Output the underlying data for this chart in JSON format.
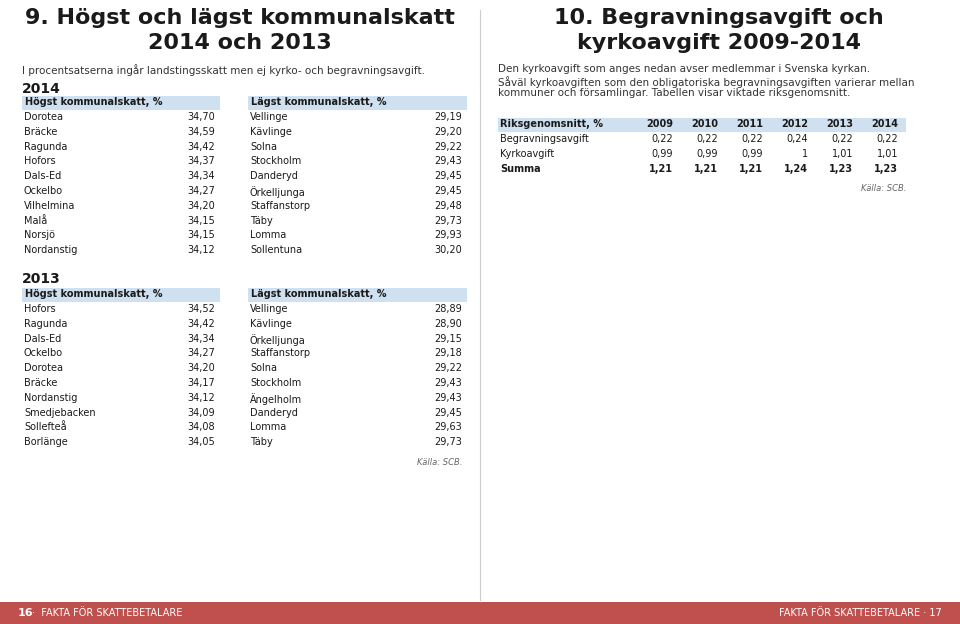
{
  "left_title_line1": "9. Högst och lägst kommunalskatt",
  "left_title_line2": "2014 och 2013",
  "left_subtitle": "I procentsatserna ingår landstingsskatt men ej kyrko- och begravningsavgift.",
  "right_title_line1": "10. Begravningsavgift och",
  "right_title_line2": "kyrkoavgift 2009-2014",
  "right_subtitle_line1": "Den kyrkoavgift som anges nedan avser medlemmar i Svenska kyrkan.",
  "right_subtitle_line2": "Såväl kyrkoavgiften som den obligatoriska begravningsavgiften varierar mellan",
  "right_subtitle_line3": "kommuner och församlingar. Tabellen visar viktade riksgenomsnitt.",
  "section_2014_label": "2014",
  "section_2013_label": "2013",
  "hogst_header": "Högst kommunalskatt, %",
  "lagst_header": "Lägst kommunalskatt, %",
  "hogst_2014": [
    [
      "Dorotea",
      "34,70"
    ],
    [
      "Bräcke",
      "34,59"
    ],
    [
      "Ragunda",
      "34,42"
    ],
    [
      "Hofors",
      "34,37"
    ],
    [
      "Dals-Ed",
      "34,34"
    ],
    [
      "Ockelbo",
      "34,27"
    ],
    [
      "Vilhelmina",
      "34,20"
    ],
    [
      "Malå",
      "34,15"
    ],
    [
      "Norsjö",
      "34,15"
    ],
    [
      "Nordanstig",
      "34,12"
    ]
  ],
  "lagst_2014": [
    [
      "Vellinge",
      "29,19"
    ],
    [
      "Kävlinge",
      "29,20"
    ],
    [
      "Solna",
      "29,22"
    ],
    [
      "Stockholm",
      "29,43"
    ],
    [
      "Danderyd",
      "29,45"
    ],
    [
      "Örkelljunga",
      "29,45"
    ],
    [
      "Staffanstorp",
      "29,48"
    ],
    [
      "Täby",
      "29,73"
    ],
    [
      "Lomma",
      "29,93"
    ],
    [
      "Sollentuna",
      "30,20"
    ]
  ],
  "hogst_2013": [
    [
      "Hofors",
      "34,52"
    ],
    [
      "Ragunda",
      "34,42"
    ],
    [
      "Dals-Ed",
      "34,34"
    ],
    [
      "Ockelbo",
      "34,27"
    ],
    [
      "Dorotea",
      "34,20"
    ],
    [
      "Bräcke",
      "34,17"
    ],
    [
      "Nordanstig",
      "34,12"
    ],
    [
      "Smedjebacken",
      "34,09"
    ],
    [
      "Sollefteå",
      "34,08"
    ],
    [
      "Borlänge",
      "34,05"
    ]
  ],
  "lagst_2013": [
    [
      "Vellinge",
      "28,89"
    ],
    [
      "Kävlinge",
      "28,90"
    ],
    [
      "Örkelljunga",
      "29,15"
    ],
    [
      "Staffanstorp",
      "29,18"
    ],
    [
      "Solna",
      "29,22"
    ],
    [
      "Stockholm",
      "29,43"
    ],
    [
      "Ängelholm",
      "29,43"
    ],
    [
      "Danderyd",
      "29,45"
    ],
    [
      "Lomma",
      "29,63"
    ],
    [
      "Täby",
      "29,73"
    ]
  ],
  "riksgenomsnitt_header": [
    "Riksgenomsnitt, %",
    "2009",
    "2010",
    "2011",
    "2012",
    "2013",
    "2014"
  ],
  "riksgenomsnitt_rows": [
    [
      "Begravningsavgift",
      "0,22",
      "0,22",
      "0,22",
      "0,24",
      "0,22",
      "0,22"
    ],
    [
      "Kyrkoavgift",
      "0,99",
      "0,99",
      "0,99",
      "1",
      "1,01",
      "1,01"
    ],
    [
      "Summa",
      "1,21",
      "1,21",
      "1,21",
      "1,24",
      "1,23",
      "1,23"
    ]
  ],
  "source_text": "Källa: SCB.",
  "footer_left_num": "16",
  "footer_left_text": "FAKTA FÖR SKATTEBETALARE",
  "footer_right_text": "FAKTA FÖR SKATTEBETALARE · 17",
  "bg_color": "#FFFFFF",
  "header_bg_color": "#cfe0f0",
  "footer_color": "#C0504D",
  "text_color": "#1a1a1a",
  "muted_color": "#333333"
}
